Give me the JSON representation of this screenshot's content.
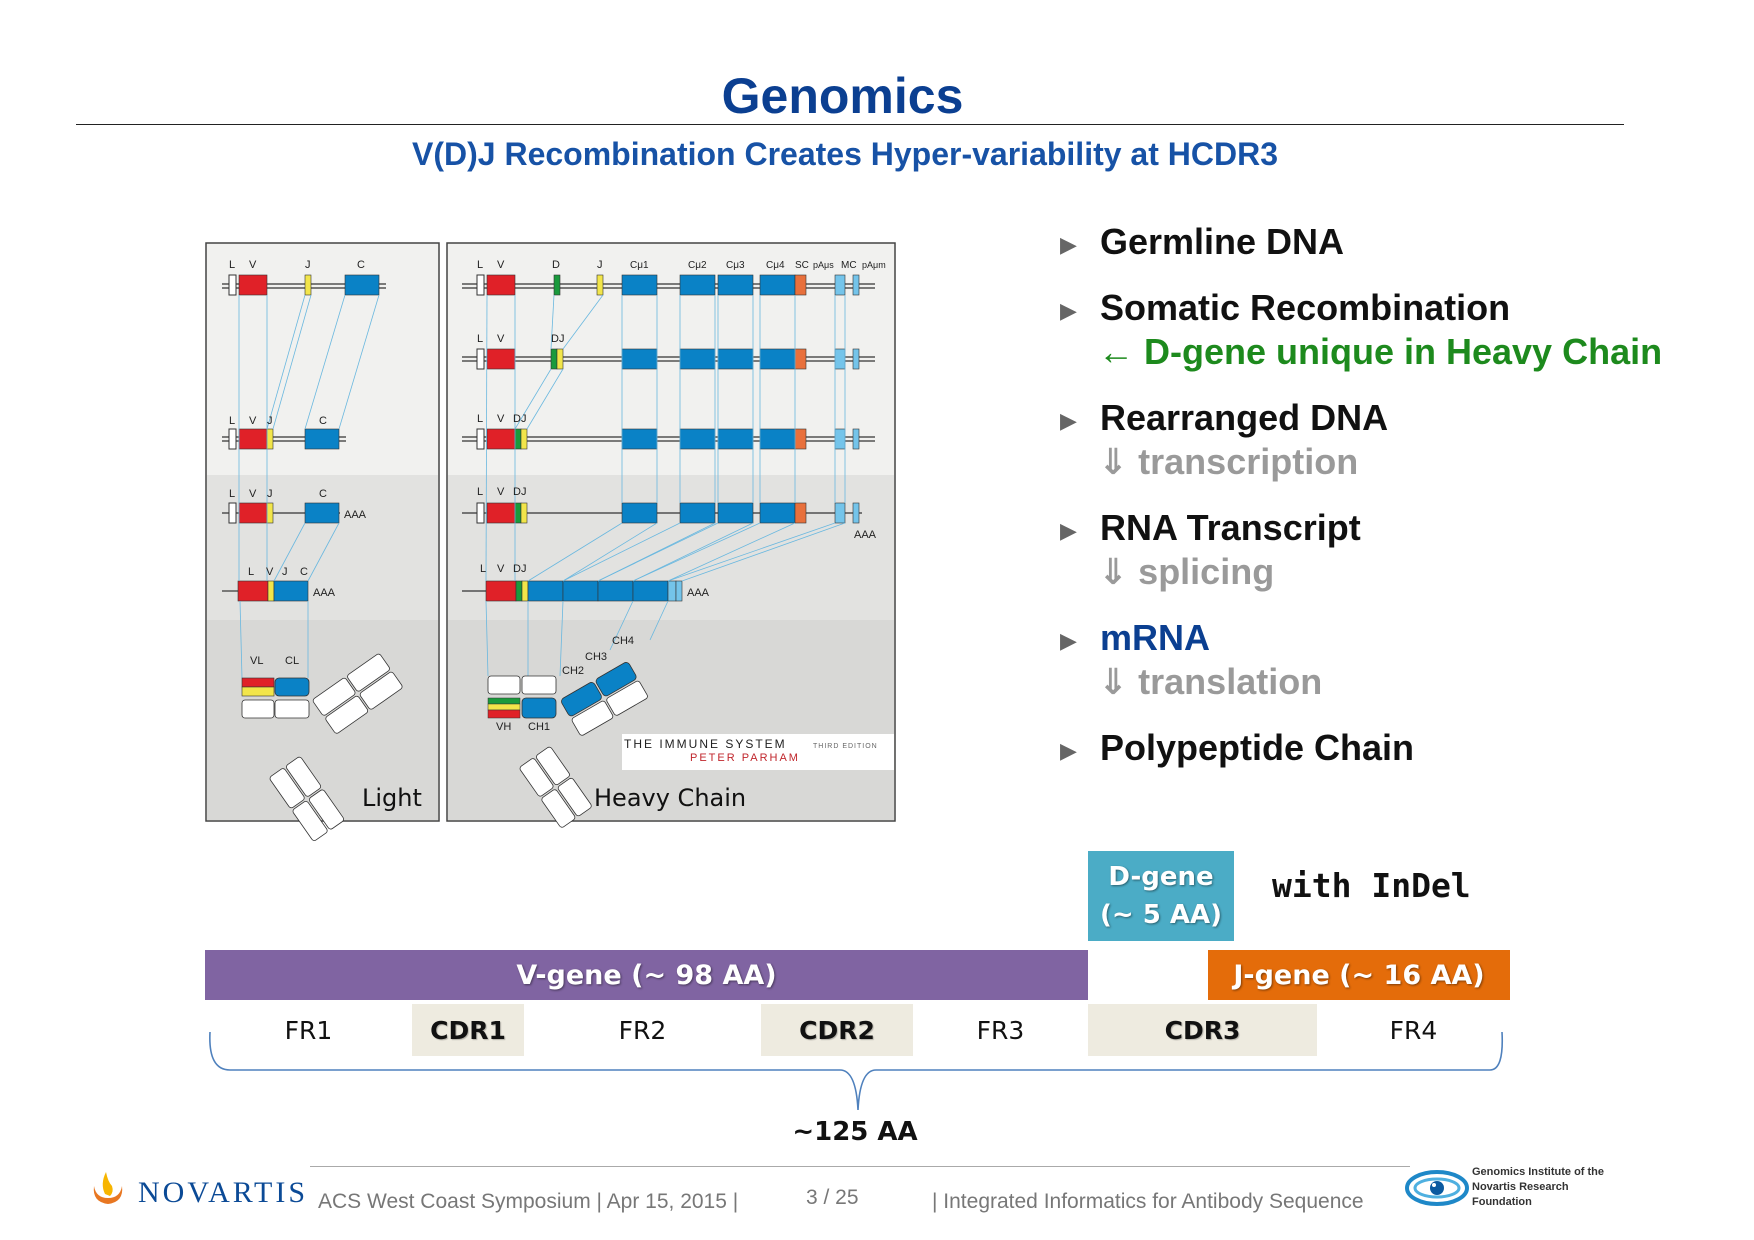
{
  "slide": {
    "title": "Genomics",
    "subtitle": "V(D)J Recombination Creates Hyper-variability at HCDR3"
  },
  "figure": {
    "light_panel_label": "Light",
    "heavy_panel_label": "Heavy Chain",
    "light_rows": [
      [
        "L",
        "V",
        "J",
        "C"
      ],
      [
        "L",
        "V",
        "J",
        "C"
      ],
      [
        "L",
        "V",
        "J",
        "C"
      ],
      [
        "L",
        "V",
        "J",
        "C"
      ]
    ],
    "heavy_rows": [
      [
        "L",
        "V",
        "D",
        "J",
        "Cμ1",
        "Cμ2",
        "Cμ3",
        "Cμ4",
        "SC",
        "pAμs",
        "MC",
        "pAμm"
      ],
      [
        "L",
        "V",
        "DJ"
      ],
      [
        "L",
        "V",
        "DJ"
      ],
      [
        "L",
        "V",
        "DJ"
      ],
      [
        "L",
        "V",
        "DJ"
      ]
    ],
    "poly_a": "AAA",
    "domain_labels": {
      "light_v": "VL",
      "light_c": "CL",
      "heavy_v": "VH",
      "ch1": "CH1",
      "ch2": "CH2",
      "ch3": "CH3",
      "ch4": "CH4"
    },
    "book": {
      "title": "THE IMMUNE SYSTEM",
      "edition": "THIRD EDITION",
      "author": "PETER PARHAM"
    },
    "colors": {
      "v": "#e02128",
      "d": "#1a9a3c",
      "j": "#f2e54a",
      "c": "#0a82c6",
      "sc": "#e8703c",
      "m": "#74c4ea"
    }
  },
  "bullets": [
    {
      "text": "Germline DNA"
    },
    {
      "text": "Somatic Recombination",
      "sub": "← D-gene unique in Heavy Chain",
      "sub_style": "green"
    },
    {
      "text": "Rearranged DNA",
      "sub": "⇓ transcription",
      "sub_style": "grey"
    },
    {
      "text": "RNA Transcript",
      "sub": "⇓ splicing",
      "sub_style": "grey"
    },
    {
      "text": "mRNA",
      "sub": "⇓ translation",
      "sub_style": "grey",
      "style": "blue"
    },
    {
      "text": "Polypeptide Chain"
    }
  ],
  "genes": {
    "d_gene_line1": "D-gene",
    "d_gene_line2": "(~ 5 AA)",
    "indel": "with InDel",
    "v_gene": "V-gene (~ 98 AA)",
    "j_gene": "J-gene (~ 16 AA)",
    "regions": [
      "FR1",
      "CDR1",
      "FR2",
      "CDR2",
      "FR3",
      "CDR3",
      "FR4"
    ],
    "total": "~125 AA",
    "colors": {
      "v": "#8064a2",
      "d": "#4bacc6",
      "j": "#e46c0a",
      "cdr": "#eeebe0",
      "brace": "#4f81bd"
    }
  },
  "footer": {
    "company": "NOVARTIS",
    "event": "ACS West Coast Symposium | Apr 15, 2015 |",
    "page": "3 / 25",
    "talk": "| Integrated Informatics for Antibody Sequence",
    "institute_line1": "Genomics Institute of the",
    "institute_line2": "Novartis Research",
    "institute_line3": "Foundation"
  }
}
